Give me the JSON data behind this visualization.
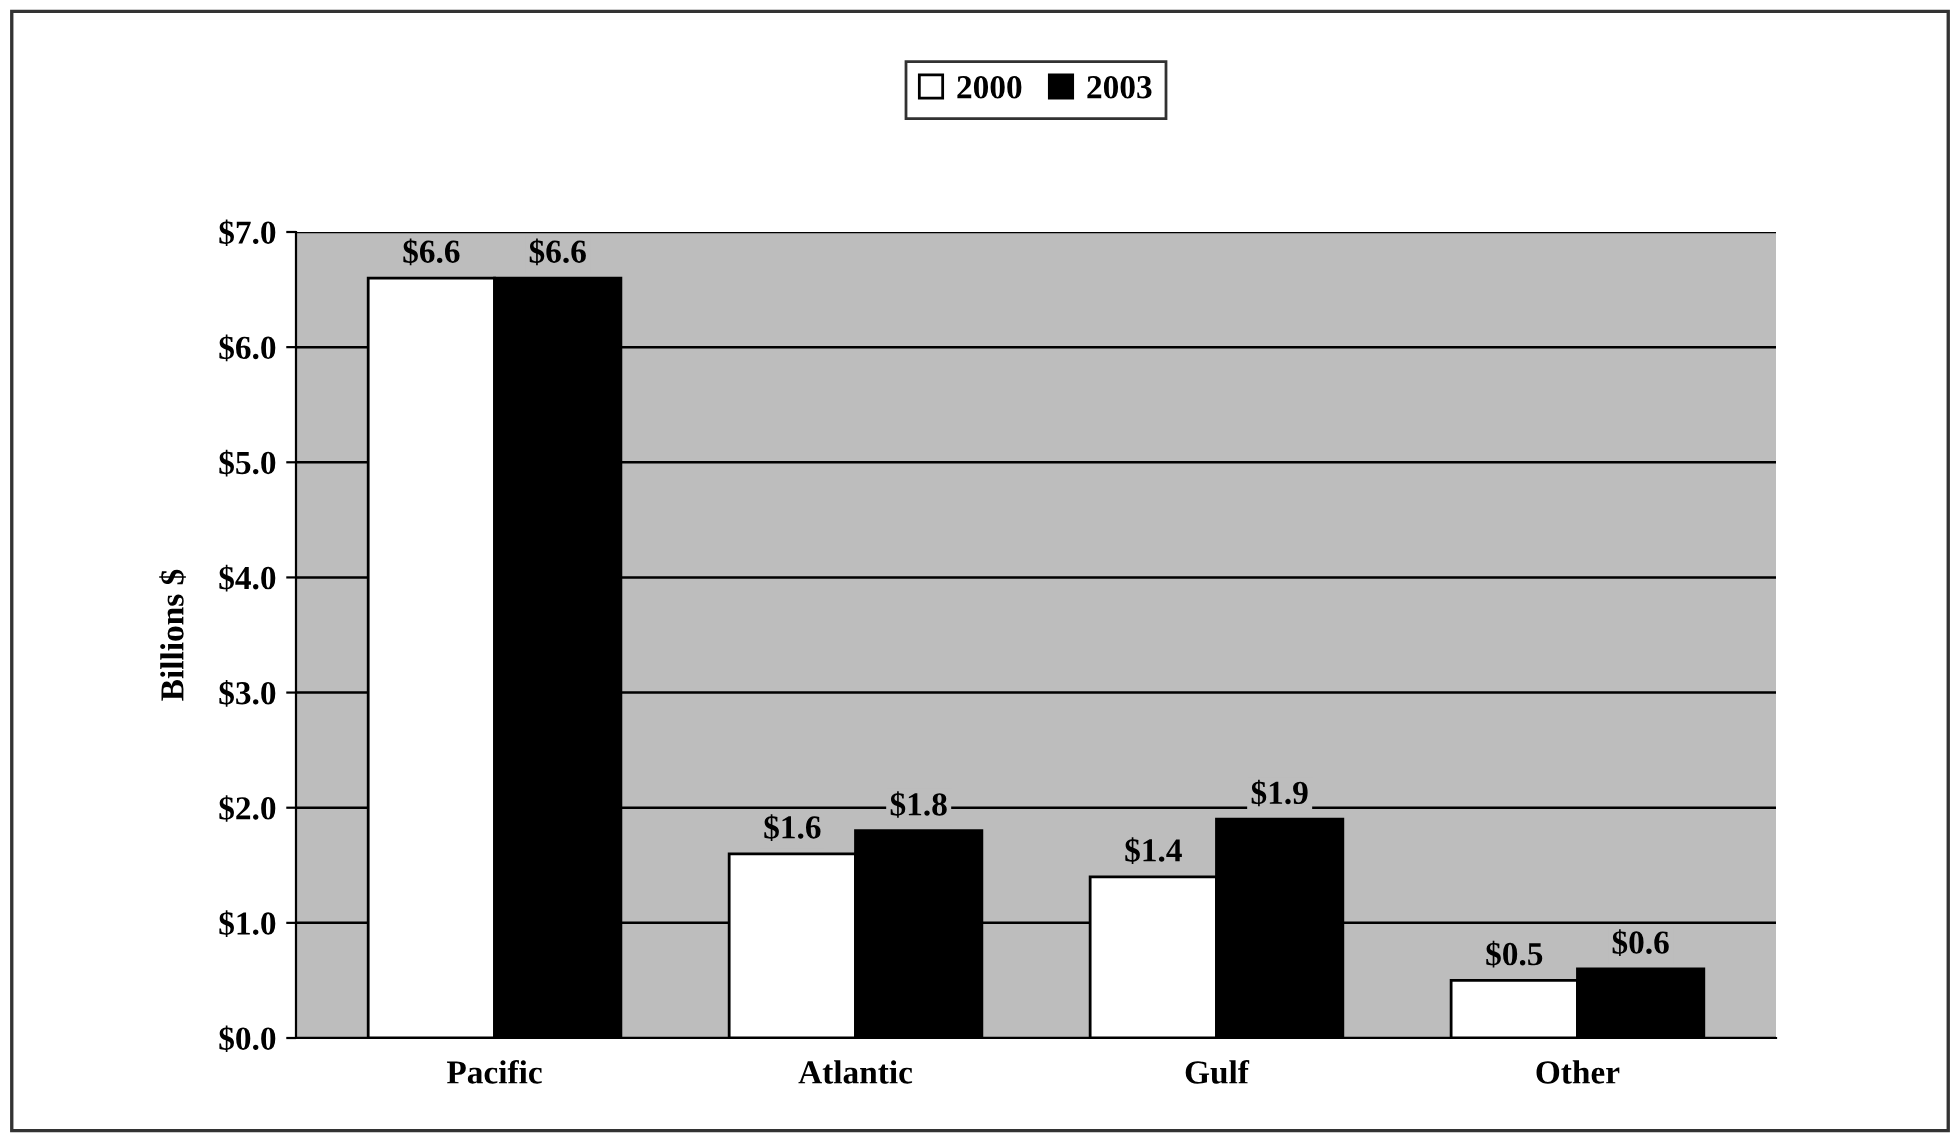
{
  "chart_data": {
    "type": "bar",
    "ylabel": "Billions $",
    "categories": [
      "Pacific",
      "Atlantic",
      "Gulf",
      "Other"
    ],
    "series": [
      {
        "name": "2000",
        "color": "#ffffff",
        "values": [
          6.6,
          1.6,
          1.4,
          0.5
        ],
        "value_labels": [
          "$6.6",
          "$1.6",
          "$1.4",
          "$0.5"
        ]
      },
      {
        "name": "2003",
        "color": "#000000",
        "values": [
          6.6,
          1.8,
          1.9,
          0.6
        ],
        "value_labels": [
          "$6.6",
          "$1.8",
          "$1.9",
          "$0.6"
        ]
      }
    ],
    "ylim": [
      0,
      7
    ],
    "yticks": [
      {
        "value": 0,
        "label": "$0.0"
      },
      {
        "value": 1,
        "label": "$1.0"
      },
      {
        "value": 2,
        "label": "$2.0"
      },
      {
        "value": 3,
        "label": "$3.0"
      },
      {
        "value": 4,
        "label": "$4.0"
      },
      {
        "value": 5,
        "label": "$5.0"
      },
      {
        "value": 6,
        "label": "$6.0"
      },
      {
        "value": 7,
        "label": "$7.0"
      }
    ],
    "grid": "y",
    "legend": "top"
  }
}
